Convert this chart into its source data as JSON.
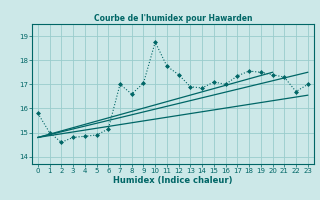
{
  "title": "Courbe de l'humidex pour Hawarden",
  "xlabel": "Humidex (Indice chaleur)",
  "bg_color": "#cce8e8",
  "grid_color": "#99cccc",
  "line_color": "#006666",
  "xlim": [
    -0.5,
    23.5
  ],
  "ylim": [
    13.7,
    19.5
  ],
  "yticks": [
    14,
    15,
    16,
    17,
    18,
    19
  ],
  "xticks": [
    0,
    1,
    2,
    3,
    4,
    5,
    6,
    7,
    8,
    9,
    10,
    11,
    12,
    13,
    14,
    15,
    16,
    17,
    18,
    19,
    20,
    21,
    22,
    23
  ],
  "main_x": [
    0,
    1,
    2,
    3,
    4,
    5,
    6,
    7,
    8,
    9,
    10,
    11,
    12,
    13,
    14,
    15,
    16,
    17,
    18,
    19,
    20,
    21,
    22,
    23
  ],
  "main_y": [
    15.8,
    15.0,
    14.6,
    14.8,
    14.85,
    14.9,
    15.15,
    17.0,
    16.6,
    17.05,
    18.75,
    17.75,
    17.4,
    16.9,
    16.85,
    17.1,
    17.0,
    17.35,
    17.55,
    17.5,
    17.4,
    17.3,
    16.7,
    17.0
  ],
  "line1_x": [
    0,
    23
  ],
  "line1_y": [
    14.8,
    16.55
  ],
  "line2_x": [
    0,
    23
  ],
  "line2_y": [
    14.8,
    17.5
  ],
  "line3_x": [
    0,
    20
  ],
  "line3_y": [
    14.8,
    17.5
  ]
}
